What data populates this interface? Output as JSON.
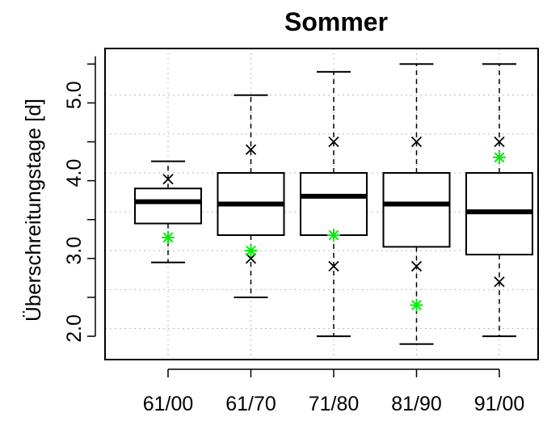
{
  "chart_data": {
    "type": "boxplot",
    "title": "Sommer",
    "ylabel": "Überschreitungstage [d]",
    "xlabel": "",
    "ylim": [
      1.6,
      5.6
    ],
    "yticks": [
      2.0,
      3.0,
      4.0,
      5.0
    ],
    "ytick_labels": [
      "2.0",
      "3.0",
      "4.0",
      "5.0"
    ],
    "grid": true,
    "colors": {
      "box": "#000000",
      "green_marker": "#00ee00",
      "grid": "#bbbbbb"
    },
    "categories": [
      "61/00",
      "61/70",
      "71/80",
      "81/90",
      "91/00"
    ],
    "boxes": [
      {
        "label": "61/00",
        "whisker_low": 2.85,
        "q1": 3.35,
        "median": 3.63,
        "q3": 3.8,
        "whisker_high": 4.15,
        "cross": [
          3.92
        ],
        "green_star": 3.17,
        "narrow": true
      },
      {
        "label": "61/70",
        "whisker_low": 2.4,
        "q1": 3.2,
        "median": 3.6,
        "q3": 4.0,
        "whisker_high": 5.0,
        "cross": [
          4.3,
          2.9
        ],
        "green_star": 3.0,
        "narrow": false
      },
      {
        "label": "71/80",
        "whisker_low": 1.9,
        "q1": 3.2,
        "median": 3.7,
        "q3": 4.0,
        "whisker_high": 5.3,
        "cross": [
          4.4,
          2.8
        ],
        "green_star": 3.2,
        "narrow": false
      },
      {
        "label": "81/90",
        "whisker_low": 1.8,
        "q1": 3.05,
        "median": 3.6,
        "q3": 4.0,
        "whisker_high": 5.4,
        "cross": [
          4.4,
          2.8
        ],
        "green_star": 2.3,
        "narrow": false
      },
      {
        "label": "91/00",
        "whisker_low": 1.9,
        "q1": 2.95,
        "median": 3.5,
        "q3": 4.0,
        "whisker_high": 5.4,
        "cross": [
          4.4,
          2.6
        ],
        "green_star": 4.2,
        "narrow": false
      }
    ]
  }
}
